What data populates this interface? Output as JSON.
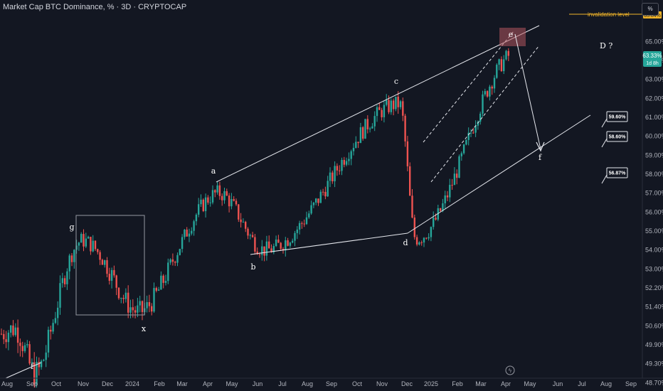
{
  "header": {
    "title": "Market Cap BTC Dominance, % · 3D · CRYPTOCAP"
  },
  "toolbar": {
    "percent_label": "%"
  },
  "price_scale": {
    "labels": [
      "65.00%",
      "64.00%",
      "63.00%",
      "62.00%",
      "61.00%",
      "60.00%",
      "59.00%",
      "58.00%",
      "57.00%",
      "56.00%",
      "55.00%",
      "54.00%",
      "53.00%",
      "52.20%",
      "51.40%",
      "50.60%",
      "49.90%",
      "49.30%",
      "48.70%"
    ]
  },
  "time_axis": {
    "labels": [
      "Aug",
      "Sep",
      "Oct",
      "Nov",
      "Dec",
      "2024",
      "Feb",
      "Mar",
      "Apr",
      "May",
      "Jun",
      "Jul",
      "Aug",
      "Sep",
      "Oct",
      "Nov",
      "Dec",
      "2025",
      "Feb",
      "Mar",
      "Apr",
      "May",
      "Jun",
      "Jul",
      "Aug",
      "Sep"
    ]
  },
  "current_price": {
    "value": "63.33%",
    "countdown": "1d 8h"
  },
  "invalidation": {
    "label": "invalidation level",
    "value": "65.84%"
  },
  "wave_labels": {
    "a": "a",
    "b": "b",
    "c": "c",
    "d": "d",
    "e": "e",
    "f": "f",
    "g": "g",
    "x": "x",
    "f_low": "f",
    "big_d": "D ?"
  },
  "targets": [
    "59.60%",
    "58.60%",
    "56.87%"
  ],
  "colors": {
    "background": "#131722",
    "up": "#26a69a",
    "down": "#ef5350",
    "line": "#d1d4dc",
    "invalidation": "#f0b429",
    "zone": "#b2555f"
  },
  "chart_data": {
    "type": "candlestick",
    "title": "Market Cap BTC Dominance, % · 3D · CRYPTOCAP",
    "y_unit": "%",
    "x_range": [
      "2023-08",
      "2025-09"
    ],
    "ylim": [
      48.5,
      65.9
    ],
    "current_value": 63.33,
    "pivots": [
      {
        "label": "f",
        "date": "2023-09-05",
        "value": 49.0
      },
      {
        "label": "g",
        "date": "2023-10-30",
        "value": 54.5
      },
      {
        "label": "x",
        "date": "2024-01-08",
        "value": 51.2
      },
      {
        "label": "a",
        "date": "2024-04-15",
        "value": 57.0
      },
      {
        "label": "b",
        "date": "2024-06-10",
        "value": 54.0
      },
      {
        "label": "c",
        "date": "2024-11-22",
        "value": 61.7
      },
      {
        "label": "d",
        "date": "2024-12-12",
        "value": 54.6
      },
      {
        "label": "e",
        "date": "2025-04-14",
        "value": 64.4
      },
      {
        "label": "f",
        "date": "2025-05-20",
        "value": 58.6
      }
    ],
    "target_levels": [
      59.6,
      58.6,
      56.87
    ],
    "invalidation_level": 65.84,
    "grid": false,
    "legend": "none"
  }
}
